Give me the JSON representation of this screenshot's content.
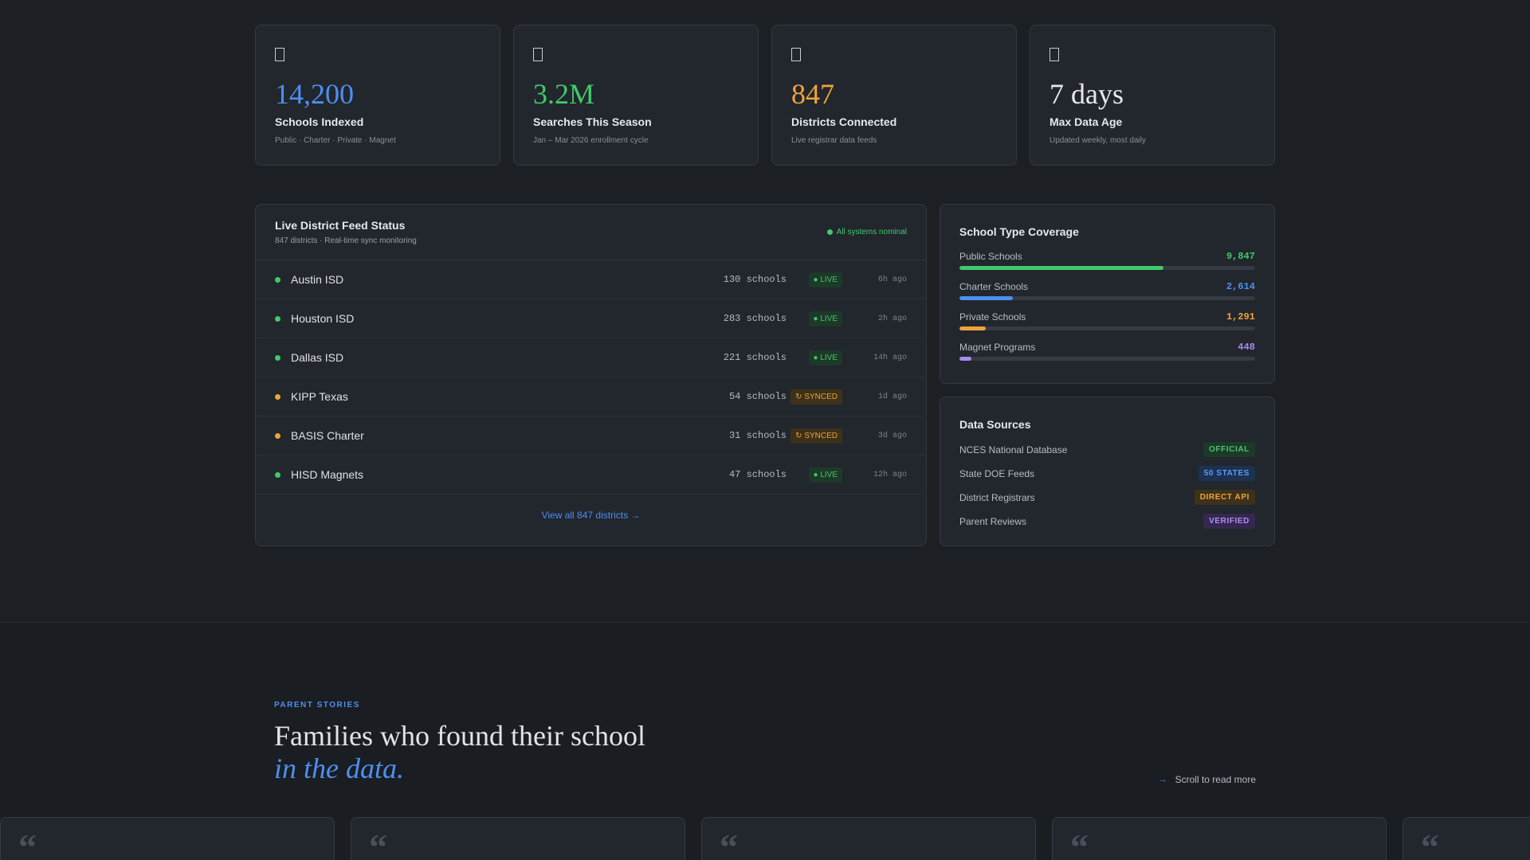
{
  "stats": [
    {
      "value": "14,200",
      "label": "Schools Indexed",
      "sub": "Public · Charter · Private · Magnet",
      "color": "#4d8ff0",
      "icon": "school-icon"
    },
    {
      "value": "3.2M",
      "label": "Searches This Season",
      "sub": "Jan – Mar 2026 enrollment cycle",
      "color": "#3fca6a",
      "icon": "search-icon"
    },
    {
      "value": "847",
      "label": "Districts Connected",
      "sub": "Live registrar data feeds",
      "color": "#f0a33a",
      "icon": "link-icon"
    },
    {
      "value": "7 days",
      "label": "Max Data Age",
      "sub": "Updated weekly, most daily",
      "color": "#e6e8eb",
      "icon": "clock-icon"
    }
  ],
  "feed": {
    "title": "Live District Feed Status",
    "subtitle": "847 districts · Real-time sync monitoring",
    "nominal": "All systems nominal",
    "rows": [
      {
        "name": "Austin ISD",
        "schools": "130 schools",
        "status": "● LIVE",
        "type": "live",
        "ago": "6h ago"
      },
      {
        "name": "Houston ISD",
        "schools": "283 schools",
        "status": "● LIVE",
        "type": "live",
        "ago": "2h ago"
      },
      {
        "name": "Dallas ISD",
        "schools": "221 schools",
        "status": "● LIVE",
        "type": "live",
        "ago": "14h ago"
      },
      {
        "name": "KIPP Texas",
        "schools": "54 schools",
        "status": "↻ SYNCED",
        "type": "synced",
        "ago": "1d ago"
      },
      {
        "name": "BASIS Charter",
        "schools": "31 schools",
        "status": "↻ SYNCED",
        "type": "synced",
        "ago": "3d ago"
      },
      {
        "name": "HISD Magnets",
        "schools": "47 schools",
        "status": "● LIVE",
        "type": "live",
        "ago": "12h ago"
      }
    ],
    "view_all": "View all 847 districts →",
    "colors": {
      "live": "#3fca6a",
      "synced": "#f0a33a"
    }
  },
  "coverage": {
    "title": "School Type Coverage",
    "items": [
      {
        "label": "Public Schools",
        "value": "9,847",
        "fraction": 0.69,
        "color": "#3fca6a"
      },
      {
        "label": "Charter Schools",
        "value": "2,614",
        "fraction": 0.18,
        "color": "#4d8ff0"
      },
      {
        "label": "Private Schools",
        "value": "1,291",
        "fraction": 0.09,
        "color": "#f0a33a"
      },
      {
        "label": "Magnet Programs",
        "value": "448",
        "fraction": 0.04,
        "color": "#a98bf0"
      }
    ]
  },
  "sources": {
    "title": "Data Sources",
    "items": [
      {
        "label": "NCES National Database",
        "badge": "OFFICIAL",
        "bg": "#1c3a28",
        "fg": "#46c56f"
      },
      {
        "label": "State DOE Feeds",
        "badge": "50 STATES",
        "bg": "#1d3150",
        "fg": "#5a9cf5"
      },
      {
        "label": "District Registrars",
        "badge": "DIRECT API",
        "bg": "#3d3119",
        "fg": "#f0a33a"
      },
      {
        "label": "Parent Reviews",
        "badge": "VERIFIED",
        "bg": "#35274f",
        "fg": "#b18ef5"
      }
    ]
  },
  "stories": {
    "eyebrow": "PARENT STORIES",
    "headline_line1": "Families who found their school",
    "headline_line2": "in the data.",
    "scroll_hint": "Scroll to read more",
    "scroll_arrow": "→",
    "quote_glyph": "“"
  }
}
